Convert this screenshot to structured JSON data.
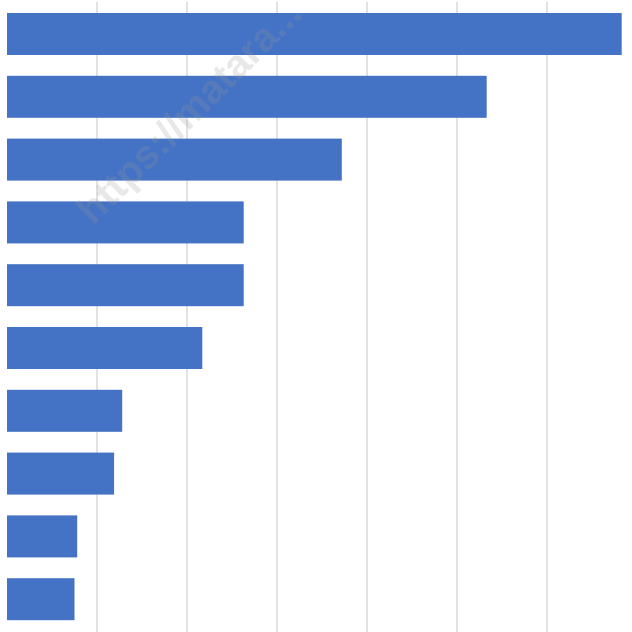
{
  "chart_data": {
    "type": "bar",
    "orientation": "horizontal",
    "title": "",
    "xlabel": "",
    "ylabel": "",
    "x_tick_labels_visible": false,
    "category_labels_visible": false,
    "grid": "vertical",
    "xlim": [
      0,
      6.8
    ],
    "values": [
      6.83,
      5.33,
      3.72,
      2.63,
      2.63,
      2.17,
      1.28,
      1.19,
      0.78,
      0.75
    ],
    "bar_color": "#4472C4",
    "grid_color": "#D9D9D9"
  },
  "watermark": {
    "text": "https://matara..."
  }
}
